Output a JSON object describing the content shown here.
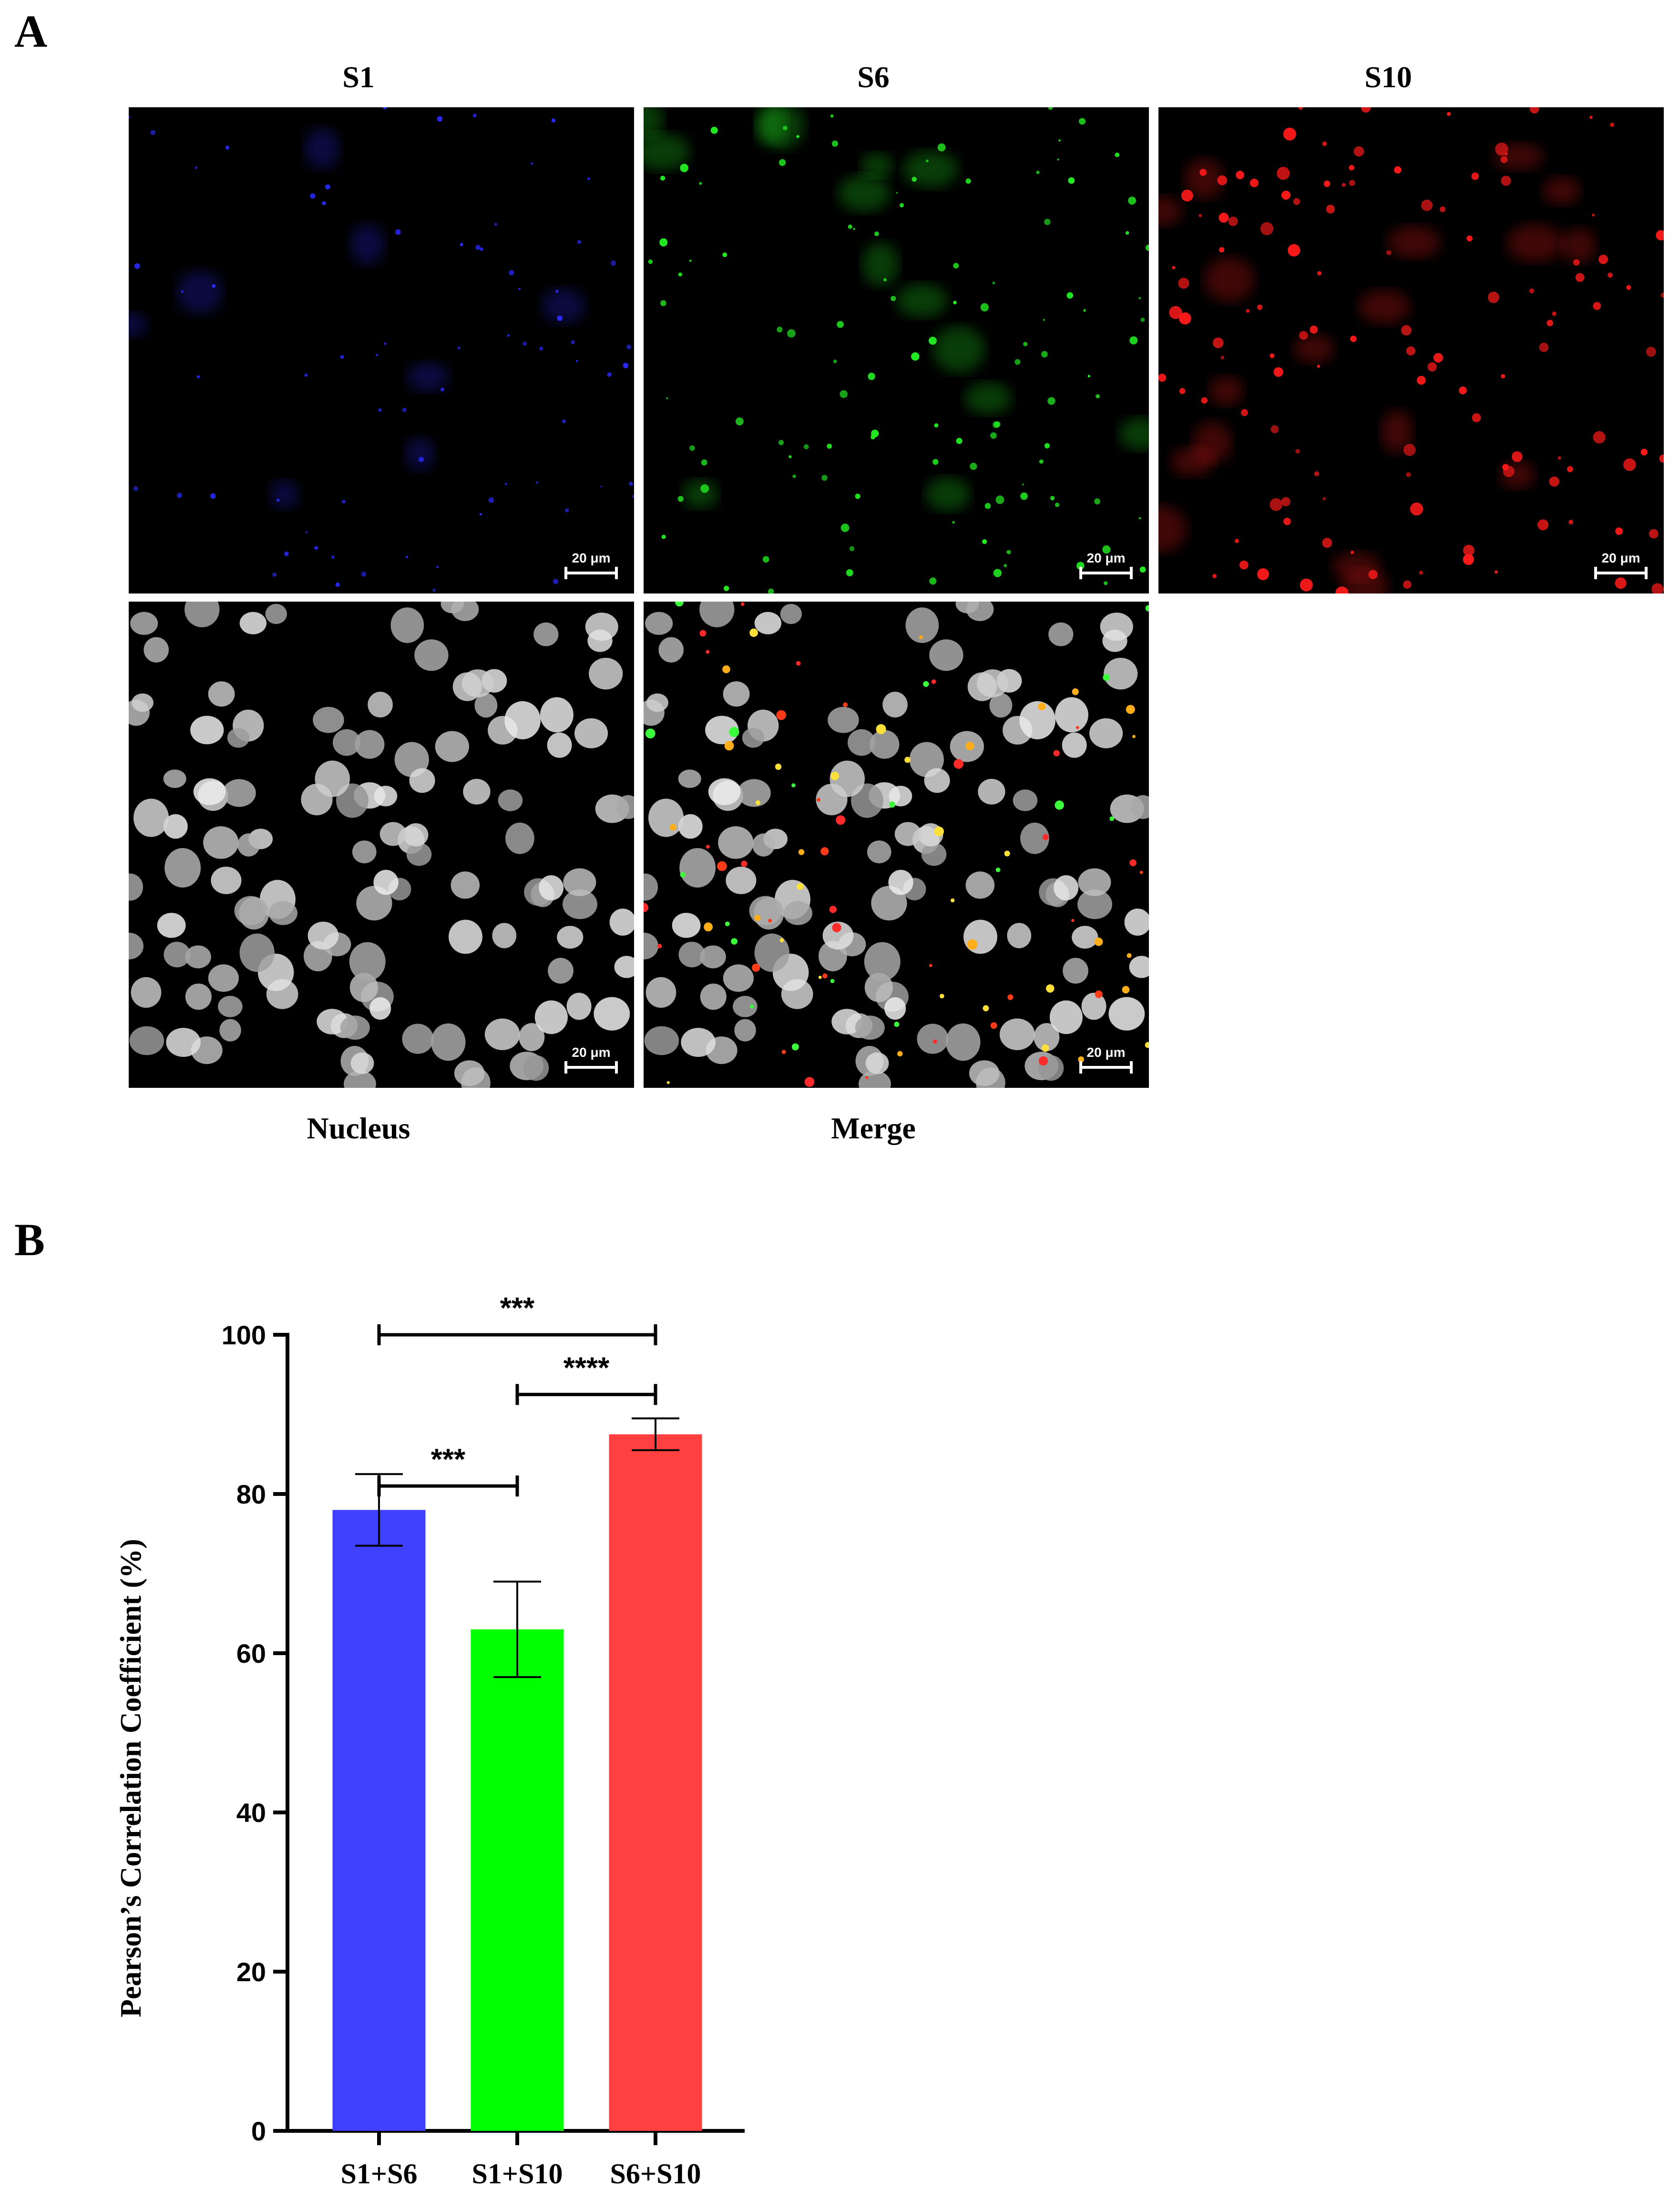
{
  "panel_a": {
    "letter": "A",
    "top_labels": [
      "S1",
      "S6",
      "S10"
    ],
    "bottom_labels": [
      "Nucleus",
      "Merge"
    ],
    "scale_bar": "20 μm",
    "channel_colors": {
      "S1": "#2a2aff",
      "S6": "#22ee22",
      "S10": "#ff1a1a",
      "Nucleus": "#e6e6e6"
    }
  },
  "panel_b": {
    "letter": "B"
  },
  "chart_data": {
    "type": "bar",
    "categories": [
      "S1+S6",
      "S1+S10",
      "S6+S10"
    ],
    "values": [
      78,
      63,
      87.5
    ],
    "errors": [
      4.5,
      6,
      2
    ],
    "colors": [
      "#4040ff",
      "#00ff00",
      "#ff4040"
    ],
    "title": "",
    "xlabel": "",
    "ylabel": "Pearson’s Correlation Coefficient (%)",
    "ylim": [
      0,
      100
    ],
    "yticks": [
      0,
      20,
      40,
      60,
      80,
      100
    ],
    "grid": false,
    "legend": "none",
    "significance": [
      {
        "from": 0,
        "to": 2,
        "label": "***",
        "level": 1
      },
      {
        "from": 1,
        "to": 2,
        "label": "****",
        "level": 2
      },
      {
        "from": 0,
        "to": 1,
        "label": "***",
        "level": 3
      }
    ]
  }
}
